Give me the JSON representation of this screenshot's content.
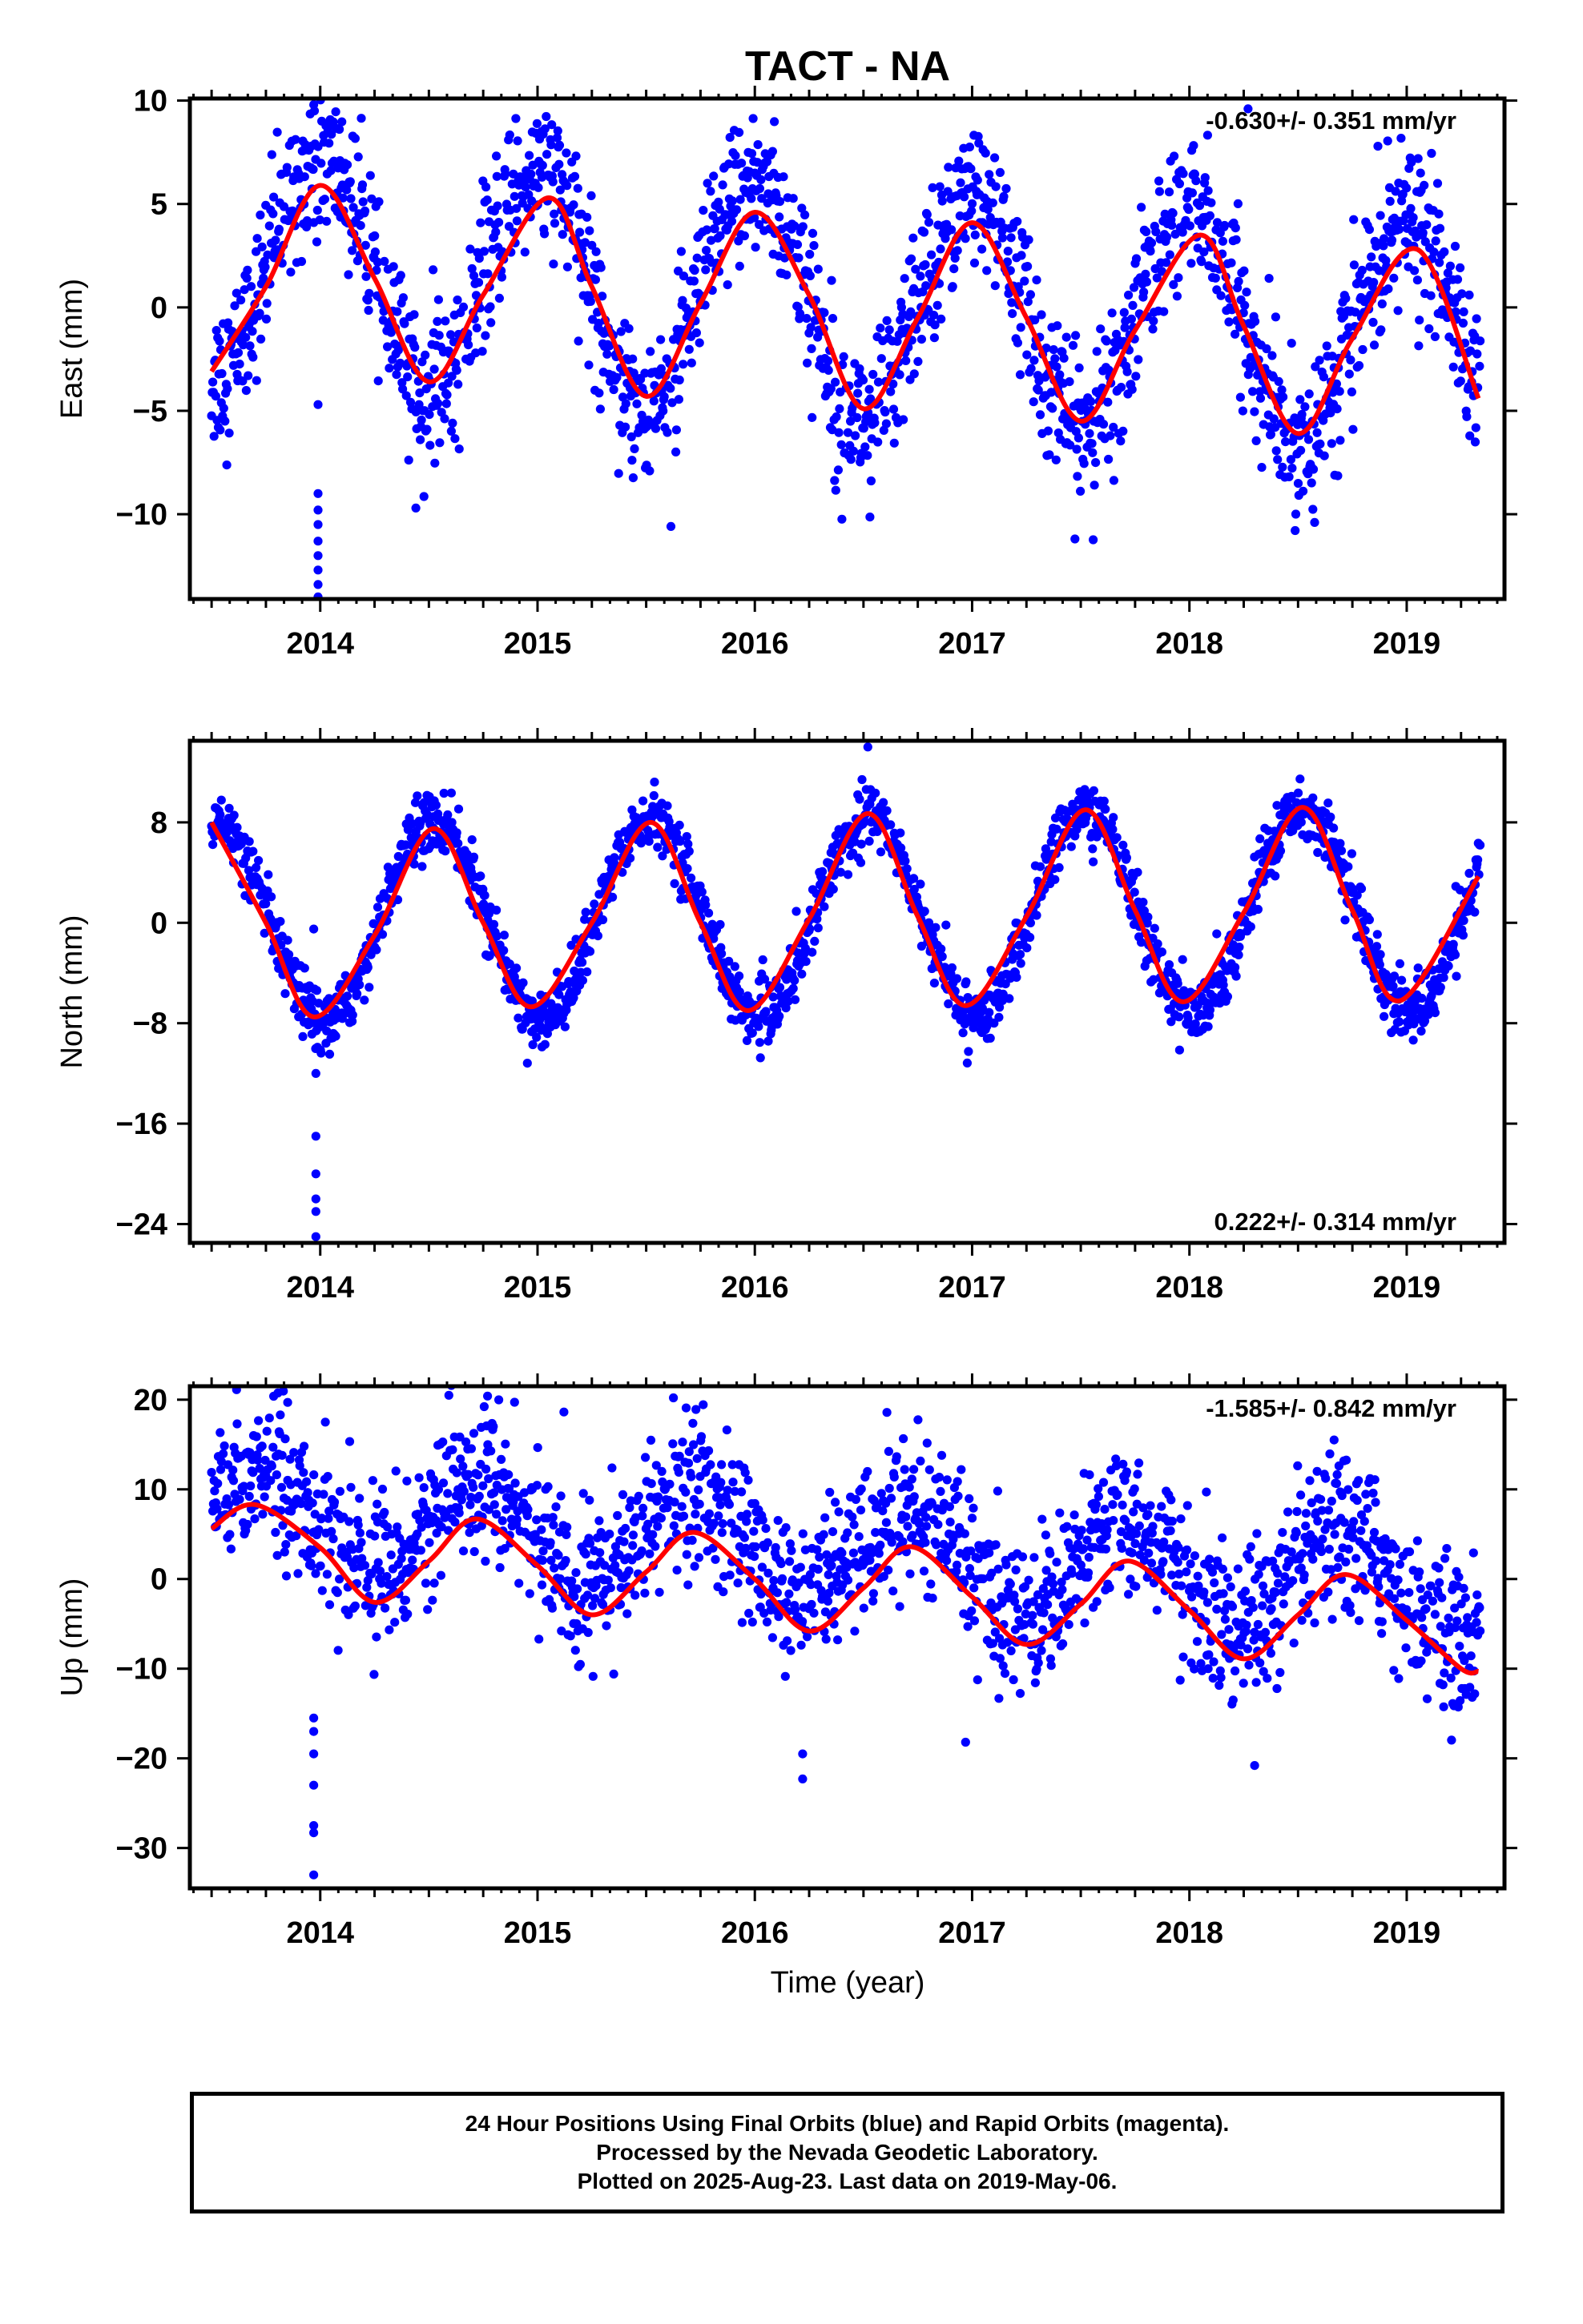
{
  "title": "TACT - NA",
  "xlabel": "Time (year)",
  "x_ticks": [
    2014,
    2015,
    2016,
    2017,
    2018,
    2019
  ],
  "xlim": [
    2013.4,
    2019.45
  ],
  "caption": {
    "line1": "24 Hour Positions Using Final Orbits (blue) and Rapid Orbits (magenta).",
    "line2": "Processed by the Nevada Geodetic Laboratory.",
    "line3": "Plotted on 2025-Aug-23. Last data on 2019-May-06."
  },
  "colors": {
    "points": "#0000ff",
    "fit": "#ff0000",
    "axis": "#000000"
  },
  "chart_data": [
    {
      "type": "scatter",
      "ylabel": "East (mm)",
      "rate_label": "-0.630+/- 0.351 mm/yr",
      "rate_position": "top-right",
      "ylim": [
        -14.1,
        10.1
      ],
      "yticks": [
        10,
        5,
        0,
        -5,
        -10
      ],
      "fit": [
        {
          "t": 2013.5,
          "v": -3.1
        },
        {
          "t": 2013.75,
          "v": 1.0
        },
        {
          "t": 2014.0,
          "v": 5.9
        },
        {
          "t": 2014.25,
          "v": 1.4
        },
        {
          "t": 2014.5,
          "v": -3.6
        },
        {
          "t": 2014.75,
          "v": 0.6
        },
        {
          "t": 2015.05,
          "v": 5.3
        },
        {
          "t": 2015.25,
          "v": 1.0
        },
        {
          "t": 2015.5,
          "v": -4.3
        },
        {
          "t": 2015.75,
          "v": 0.2
        },
        {
          "t": 2016.0,
          "v": 4.6
        },
        {
          "t": 2016.25,
          "v": 0.6
        },
        {
          "t": 2016.5,
          "v": -4.9
        },
        {
          "t": 2016.75,
          "v": -0.5
        },
        {
          "t": 2017.0,
          "v": 4.1
        },
        {
          "t": 2017.25,
          "v": -0.5
        },
        {
          "t": 2017.5,
          "v": -5.5
        },
        {
          "t": 2017.75,
          "v": -1.1
        },
        {
          "t": 2018.05,
          "v": 3.5
        },
        {
          "t": 2018.25,
          "v": -0.9
        },
        {
          "t": 2018.5,
          "v": -6.1
        },
        {
          "t": 2018.75,
          "v": -1.5
        },
        {
          "t": 2019.05,
          "v": 2.8
        },
        {
          "t": 2019.33,
          "v": -4.4
        }
      ],
      "scatter_amplitude_mm": 5.5,
      "scatter_phase_year": 2014.0,
      "scatter_offset_mm": 0.3,
      "scatter_trend_mm_per_yr": -0.63,
      "scatter_noise_mm": 1.8,
      "outliers": [
        {
          "t": 2013.99,
          "v": -4.7
        },
        {
          "t": 2013.99,
          "v": -9.0
        },
        {
          "t": 2013.99,
          "v": -9.8
        },
        {
          "t": 2013.99,
          "v": -10.5
        },
        {
          "t": 2013.99,
          "v": -11.3
        },
        {
          "t": 2013.99,
          "v": -12.0
        },
        {
          "t": 2013.99,
          "v": -12.7
        },
        {
          "t": 2013.99,
          "v": -13.4
        },
        {
          "t": 2013.99,
          "v": -14.0
        },
        {
          "t": 2013.97,
          "v": 9.8
        },
        {
          "t": 2014.44,
          "v": -9.7
        },
        {
          "t": 2018.27,
          "v": 9.6
        }
      ]
    },
    {
      "type": "scatter",
      "ylabel": "North (mm)",
      "rate_label": "0.222+/- 0.314 mm/yr",
      "rate_position": "bottom-right",
      "ylim": [
        -25.5,
        14.5
      ],
      "yticks": [
        8,
        0,
        -8,
        -16,
        -24
      ],
      "fit": [
        {
          "t": 2013.5,
          "v": 8.0
        },
        {
          "t": 2013.75,
          "v": 0.0
        },
        {
          "t": 2013.97,
          "v": -7.5
        },
        {
          "t": 2014.25,
          "v": -1.0
        },
        {
          "t": 2014.52,
          "v": 7.5
        },
        {
          "t": 2014.75,
          "v": 0.0
        },
        {
          "t": 2014.97,
          "v": -6.7
        },
        {
          "t": 2015.25,
          "v": 0.0
        },
        {
          "t": 2015.52,
          "v": 8.0
        },
        {
          "t": 2015.75,
          "v": 0.0
        },
        {
          "t": 2015.97,
          "v": -7.0
        },
        {
          "t": 2016.25,
          "v": 0.3
        },
        {
          "t": 2016.52,
          "v": 8.7
        },
        {
          "t": 2016.75,
          "v": 0.5
        },
        {
          "t": 2016.97,
          "v": -6.6
        },
        {
          "t": 2017.25,
          "v": 0.5
        },
        {
          "t": 2017.52,
          "v": 9.0
        },
        {
          "t": 2017.75,
          "v": 1.0
        },
        {
          "t": 2017.97,
          "v": -6.3
        },
        {
          "t": 2018.25,
          "v": 0.8
        },
        {
          "t": 2018.52,
          "v": 9.2
        },
        {
          "t": 2018.75,
          "v": 1.0
        },
        {
          "t": 2018.97,
          "v": -6.2
        },
        {
          "t": 2019.33,
          "v": 3.7
        }
      ],
      "scatter_amplitude_mm": 8.0,
      "scatter_phase_year": 2013.52,
      "scatter_offset_mm": 0.5,
      "scatter_trend_mm_per_yr": 0.22,
      "scatter_noise_mm": 1.2,
      "outliers": [
        {
          "t": 2013.98,
          "v": -12.0
        },
        {
          "t": 2013.98,
          "v": -17.0
        },
        {
          "t": 2013.98,
          "v": -20.0
        },
        {
          "t": 2013.98,
          "v": -22.0
        },
        {
          "t": 2013.98,
          "v": -23.0
        },
        {
          "t": 2013.98,
          "v": -25.0
        },
        {
          "t": 2013.97,
          "v": -0.5
        },
        {
          "t": 2016.52,
          "v": 14.0
        }
      ]
    },
    {
      "type": "scatter",
      "ylabel": "Up (mm)",
      "rate_label": "-1.585+/- 0.842 mm/yr",
      "rate_position": "top-right",
      "ylim": [
        -34.5,
        21.5
      ],
      "yticks": [
        20,
        10,
        0,
        -10,
        -20,
        -30
      ],
      "fit": [
        {
          "t": 2013.5,
          "v": 5.6
        },
        {
          "t": 2013.7,
          "v": 8.3
        },
        {
          "t": 2014.0,
          "v": 3.5
        },
        {
          "t": 2014.25,
          "v": -2.6
        },
        {
          "t": 2014.5,
          "v": 2.0
        },
        {
          "t": 2014.72,
          "v": 6.7
        },
        {
          "t": 2015.0,
          "v": 1.5
        },
        {
          "t": 2015.25,
          "v": -4.0
        },
        {
          "t": 2015.5,
          "v": 0.8
        },
        {
          "t": 2015.72,
          "v": 5.2
        },
        {
          "t": 2016.0,
          "v": 0.0
        },
        {
          "t": 2016.25,
          "v": -5.8
        },
        {
          "t": 2016.5,
          "v": -1.0
        },
        {
          "t": 2016.72,
          "v": 3.6
        },
        {
          "t": 2017.0,
          "v": -2.0
        },
        {
          "t": 2017.25,
          "v": -7.3
        },
        {
          "t": 2017.5,
          "v": -2.8
        },
        {
          "t": 2017.72,
          "v": 2.0
        },
        {
          "t": 2018.0,
          "v": -3.5
        },
        {
          "t": 2018.25,
          "v": -8.9
        },
        {
          "t": 2018.5,
          "v": -4.0
        },
        {
          "t": 2018.72,
          "v": 0.5
        },
        {
          "t": 2019.0,
          "v": -4.6
        },
        {
          "t": 2019.25,
          "v": -10.0
        },
        {
          "t": 2019.33,
          "v": -10.3
        }
      ],
      "scatter_amplitude_mm": 5.4,
      "scatter_phase_year": 2013.72,
      "scatter_offset_mm": 3.0,
      "scatter_trend_mm_per_yr": -1.585,
      "scatter_noise_mm": 4.2,
      "outliers": [
        {
          "t": 2013.97,
          "v": -15.5
        },
        {
          "t": 2013.97,
          "v": -17.0
        },
        {
          "t": 2013.97,
          "v": -19.5
        },
        {
          "t": 2013.97,
          "v": -23.0
        },
        {
          "t": 2013.97,
          "v": -27.5
        },
        {
          "t": 2013.97,
          "v": -28.3
        },
        {
          "t": 2013.97,
          "v": -33.0
        },
        {
          "t": 2013.85,
          "v": 19.7
        },
        {
          "t": 2014.77,
          "v": 20.4
        },
        {
          "t": 2016.22,
          "v": -22.3
        },
        {
          "t": 2016.22,
          "v": -19.5
        },
        {
          "t": 2016.97,
          "v": -18.2
        },
        {
          "t": 2018.3,
          "v": -20.8
        }
      ]
    }
  ]
}
